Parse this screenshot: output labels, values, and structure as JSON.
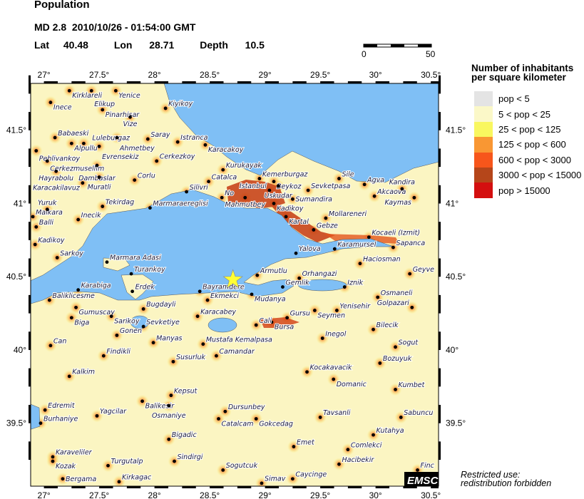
{
  "header": {
    "title": "Population",
    "magnitude": "MD 2.8",
    "datetime": "2010/10/26 - 01:54:00 GMT",
    "lat_label": "Lat",
    "lat": 40.48,
    "lon_label": "Lon",
    "lon": 28.71,
    "depth_label": "Depth",
    "depth": 10.5
  },
  "scale_bar": {
    "start": "0",
    "end": "50"
  },
  "map": {
    "lon_range": [
      26.88,
      30.57
    ],
    "lat_range": [
      39.07,
      41.82
    ],
    "lon_ticks": [
      "27°",
      "27.5°",
      "28°",
      "28.5°",
      "29°",
      "29.5°",
      "30°",
      "30.5°"
    ],
    "lon_tick_values": [
      27,
      27.5,
      28,
      28.5,
      29,
      29.5,
      30,
      30.5
    ],
    "lat_ticks": [
      "41.5°",
      "41°",
      "40.5°",
      "40°",
      "39.5°"
    ],
    "lat_tick_values": [
      41.5,
      41,
      40.5,
      40,
      39.5
    ],
    "sea_color": "#7fbff5",
    "epicenter_color": "#ffff33",
    "epicenter_icon": "star-icon",
    "logo": "EMSC",
    "cities": [
      {
        "name": "Kirklareli",
        "lon": 27.23,
        "lat": 41.77
      },
      {
        "name": "Elikup",
        "lon": 27.43,
        "lat": 41.77
      },
      {
        "name": "Yenice",
        "lon": 27.65,
        "lat": 41.77
      },
      {
        "name": "Inece",
        "lon": 27.06,
        "lat": 41.69
      },
      {
        "name": "Pinarhisar",
        "lon": 27.53,
        "lat": 41.64
      },
      {
        "name": "Vize",
        "lon": 27.78,
        "lat": 41.59
      },
      {
        "name": "Kiyikoy",
        "lon": 28.1,
        "lat": 41.65
      },
      {
        "name": "Babaeski",
        "lon": 27.1,
        "lat": 41.45
      },
      {
        "name": "Alpullu",
        "lon": 27.25,
        "lat": 41.41
      },
      {
        "name": "Luleburgaz",
        "lon": 27.36,
        "lat": 41.41
      },
      {
        "name": "Ahmetbey",
        "lon": 27.66,
        "lat": 41.45
      },
      {
        "name": "Saray",
        "lon": 27.94,
        "lat": 41.44
      },
      {
        "name": "Istranca",
        "lon": 28.21,
        "lat": 41.42
      },
      {
        "name": "Karacakoy",
        "lon": 28.46,
        "lat": 41.4
      },
      {
        "name": "Evrensekiz",
        "lon": 27.5,
        "lat": 41.39
      },
      {
        "name": "Pehlivankoy",
        "lon": 26.93,
        "lat": 41.36
      },
      {
        "name": "Cerkezmusellim",
        "lon": 27.03,
        "lat": 41.29
      },
      {
        "name": "Dambaslar",
        "lon": 27.48,
        "lat": 41.26
      },
      {
        "name": "Cerkezkoy",
        "lon": 28.02,
        "lat": 41.29
      },
      {
        "name": "Hayrabolu",
        "lon": 27.11,
        "lat": 41.22
      },
      {
        "name": "Muratli",
        "lon": 27.5,
        "lat": 41.18
      },
      {
        "name": "Corlu",
        "lon": 27.82,
        "lat": 41.16
      },
      {
        "name": "Karacakilavuz",
        "lon": 27.35,
        "lat": 41.14
      },
      {
        "name": "Kurukayak",
        "lon": 28.62,
        "lat": 41.23
      },
      {
        "name": "Catalca",
        "lon": 28.49,
        "lat": 41.15
      },
      {
        "name": "Silivri",
        "lon": 28.29,
        "lat": 41.08
      },
      {
        "name": "No",
        "lon": 28.61,
        "lat": 41.04
      },
      {
        "name": "Tekirdag",
        "lon": 27.53,
        "lat": 40.98
      },
      {
        "name": "Marmaraereglisi",
        "lon": 27.96,
        "lat": 40.97
      },
      {
        "name": "Kemerburgaz",
        "lon": 28.95,
        "lat": 41.17
      },
      {
        "name": "Beykoz",
        "lon": 29.08,
        "lat": 41.15
      },
      {
        "name": "Uskudar",
        "lon": 29.12,
        "lat": 41.12
      },
      {
        "name": "Istanbul",
        "lon": 29.04,
        "lat": 41.09
      },
      {
        "name": "Mahmutbey",
        "lon": 28.82,
        "lat": 41.04
      },
      {
        "name": "Sevketpasa",
        "lon": 29.39,
        "lat": 41.09
      },
      {
        "name": "Sile",
        "lon": 29.67,
        "lat": 41.17
      },
      {
        "name": "Agva",
        "lon": 29.9,
        "lat": 41.13
      },
      {
        "name": "Kadikoy",
        "lon": 29.08,
        "lat": 41.0
      },
      {
        "name": "Sumandira",
        "lon": 29.25,
        "lat": 41.03
      },
      {
        "name": "Akcaova",
        "lon": 29.99,
        "lat": 41.05
      },
      {
        "name": "Kandira",
        "lon": 30.24,
        "lat": 41.1
      },
      {
        "name": "Kaymas",
        "lon": 30.35,
        "lat": 41.04
      },
      {
        "name": "Kartal",
        "lon": 29.19,
        "lat": 40.91
      },
      {
        "name": "Mollareneri",
        "lon": 29.55,
        "lat": 40.9
      },
      {
        "name": "Gebze",
        "lon": 29.44,
        "lat": 40.82
      },
      {
        "name": "Kocaeli (Izmit)",
        "lon": 29.94,
        "lat": 40.77
      },
      {
        "name": "Sapanca",
        "lon": 30.16,
        "lat": 40.7
      },
      {
        "name": "Yalova",
        "lon": 29.28,
        "lat": 40.66
      },
      {
        "name": "Karamursel",
        "lon": 29.63,
        "lat": 40.69
      },
      {
        "name": "Malkara",
        "lon": 26.9,
        "lat": 40.91
      },
      {
        "name": "Yuruk",
        "lon": 27.03,
        "lat": 40.96
      },
      {
        "name": "Inecik",
        "lon": 27.31,
        "lat": 40.89
      },
      {
        "name": "Balli",
        "lon": 26.93,
        "lat": 40.84
      },
      {
        "name": "Kadikoy",
        "lon": 26.92,
        "lat": 40.72
      },
      {
        "name": "Sarkoy",
        "lon": 27.12,
        "lat": 40.63
      },
      {
        "name": "Marmara Adasi",
        "lon": 27.57,
        "lat": 40.6
      },
      {
        "name": "Turankoy",
        "lon": 27.79,
        "lat": 40.52
      },
      {
        "name": "Erdek",
        "lon": 27.8,
        "lat": 40.4
      },
      {
        "name": "Karabiga",
        "lon": 27.31,
        "lat": 40.41
      },
      {
        "name": "Baliklicesme",
        "lon": 27.05,
        "lat": 40.34
      },
      {
        "name": "Gumuscay",
        "lon": 27.29,
        "lat": 40.29
      },
      {
        "name": "Biga",
        "lon": 27.25,
        "lat": 40.22
      },
      {
        "name": "Bugdayli",
        "lon": 27.9,
        "lat": 40.28
      },
      {
        "name": "Sarikoy",
        "lon": 27.61,
        "lat": 40.23
      },
      {
        "name": "Sevketiye",
        "lon": 27.9,
        "lat": 40.16
      },
      {
        "name": "Gonen",
        "lon": 27.66,
        "lat": 40.1
      },
      {
        "name": "Manyas",
        "lon": 27.99,
        "lat": 40.05
      },
      {
        "name": "Can",
        "lon": 27.06,
        "lat": 40.03
      },
      {
        "name": "Bayramdere",
        "lon": 28.41,
        "lat": 40.4
      },
      {
        "name": "Ekmekci",
        "lon": 28.48,
        "lat": 40.34
      },
      {
        "name": "Karacabey",
        "lon": 28.39,
        "lat": 40.23
      },
      {
        "name": "Mustafa Kemalpasa",
        "lon": 28.44,
        "lat": 40.04
      },
      {
        "name": "Findikli",
        "lon": 27.54,
        "lat": 39.96
      },
      {
        "name": "Susurluk",
        "lon": 28.17,
        "lat": 39.92
      },
      {
        "name": "Camandar",
        "lon": 28.56,
        "lat": 39.96
      },
      {
        "name": "Armutlu",
        "lon": 28.93,
        "lat": 40.51
      },
      {
        "name": "Orhangazi",
        "lon": 29.31,
        "lat": 40.49
      },
      {
        "name": "Gemlik",
        "lon": 29.16,
        "lat": 40.43
      },
      {
        "name": "Mudanya",
        "lon": 28.88,
        "lat": 40.38
      },
      {
        "name": "Iznik",
        "lon": 29.72,
        "lat": 40.43
      },
      {
        "name": "Haciosman",
        "lon": 29.86,
        "lat": 40.59
      },
      {
        "name": "Geyve",
        "lon": 30.31,
        "lat": 40.52
      },
      {
        "name": "Osmaneli",
        "lon": 30.02,
        "lat": 40.36
      },
      {
        "name": "Yenisehir",
        "lon": 29.65,
        "lat": 40.27
      },
      {
        "name": "Seymen",
        "lon": 29.45,
        "lat": 40.27
      },
      {
        "name": "Gursu",
        "lon": 29.2,
        "lat": 40.22
      },
      {
        "name": "Bursa",
        "lon": 29.06,
        "lat": 40.19
      },
      {
        "name": "Cali",
        "lon": 28.92,
        "lat": 40.17
      },
      {
        "name": "Golpazari",
        "lon": 30.33,
        "lat": 40.29
      },
      {
        "name": "Bilecik",
        "lon": 29.98,
        "lat": 40.14
      },
      {
        "name": "Inegol",
        "lon": 29.52,
        "lat": 40.08
      },
      {
        "name": "Sogut",
        "lon": 30.18,
        "lat": 40.02
      },
      {
        "name": "Bozuyuk",
        "lon": 30.04,
        "lat": 39.91
      },
      {
        "name": "Kocakavacik",
        "lon": 29.38,
        "lat": 39.85
      },
      {
        "name": "Domanic",
        "lon": 29.62,
        "lat": 39.8
      },
      {
        "name": "Kalkim",
        "lon": 27.23,
        "lat": 39.82
      },
      {
        "name": "Kumbet",
        "lon": 30.18,
        "lat": 39.73
      },
      {
        "name": "Kepsut",
        "lon": 28.15,
        "lat": 39.69
      },
      {
        "name": "Balikesir",
        "lon": 27.89,
        "lat": 39.65
      },
      {
        "name": "Osmaniye",
        "lon": 28.13,
        "lat": 39.62
      },
      {
        "name": "Dursunbey",
        "lon": 28.64,
        "lat": 39.58
      },
      {
        "name": "Catalcam",
        "lon": 28.58,
        "lat": 39.53
      },
      {
        "name": "Gokcedag",
        "lon": 28.92,
        "lat": 39.53
      },
      {
        "name": "Tavsanli",
        "lon": 29.5,
        "lat": 39.54
      },
      {
        "name": "Sabuncu",
        "lon": 30.23,
        "lat": 39.54
      },
      {
        "name": "Edremit",
        "lon": 27.01,
        "lat": 39.59
      },
      {
        "name": "Yagcilar",
        "lon": 27.48,
        "lat": 39.55
      },
      {
        "name": "Burhaniye",
        "lon": 26.97,
        "lat": 39.5
      },
      {
        "name": "Kutahya",
        "lon": 29.98,
        "lat": 39.42
      },
      {
        "name": "Bigadic",
        "lon": 28.13,
        "lat": 39.39
      },
      {
        "name": "Emet",
        "lon": 29.26,
        "lat": 39.34
      },
      {
        "name": "Comlekci",
        "lon": 29.75,
        "lat": 39.32
      },
      {
        "name": "Karaveliler",
        "lon": 27.08,
        "lat": 39.27
      },
      {
        "name": "Kozak",
        "lon": 27.08,
        "lat": 39.24
      },
      {
        "name": "Hacibekir",
        "lon": 29.67,
        "lat": 39.22
      },
      {
        "name": "Sindirgi",
        "lon": 28.18,
        "lat": 39.24
      },
      {
        "name": "Turgutalp",
        "lon": 27.58,
        "lat": 39.21
      },
      {
        "name": "Sogutcuk",
        "lon": 28.62,
        "lat": 39.18
      },
      {
        "name": "Bergama",
        "lon": 27.17,
        "lat": 39.12
      },
      {
        "name": "Kirkagac",
        "lon": 27.68,
        "lat": 39.1
      },
      {
        "name": "Simav",
        "lon": 28.97,
        "lat": 39.09
      },
      {
        "name": "Caycinge",
        "lon": 29.25,
        "lat": 39.12
      },
      {
        "name": "Finc",
        "lon": 30.38,
        "lat": 39.18
      }
    ]
  },
  "legend": {
    "title_line1": "Number of inhabitants",
    "title_line2": "per square kilometer",
    "items": [
      {
        "label": "pop < 5",
        "color": "#e4e4e4"
      },
      {
        "label": "5 < pop < 25",
        "color": "#fbf8c8"
      },
      {
        "label": "25 < pop < 125",
        "color": "#f9f75f"
      },
      {
        "label": "125 < pop < 600",
        "color": "#f99733"
      },
      {
        "label": "600 < pop < 3000",
        "color": "#f7561b"
      },
      {
        "label": "3000 < pop < 15000",
        "color": "#b5461a"
      },
      {
        "label": "pop > 15000",
        "color": "#d40f0f"
      }
    ]
  },
  "notice": {
    "line1": "Restricted use:",
    "line2": "redistribution forbidden"
  }
}
